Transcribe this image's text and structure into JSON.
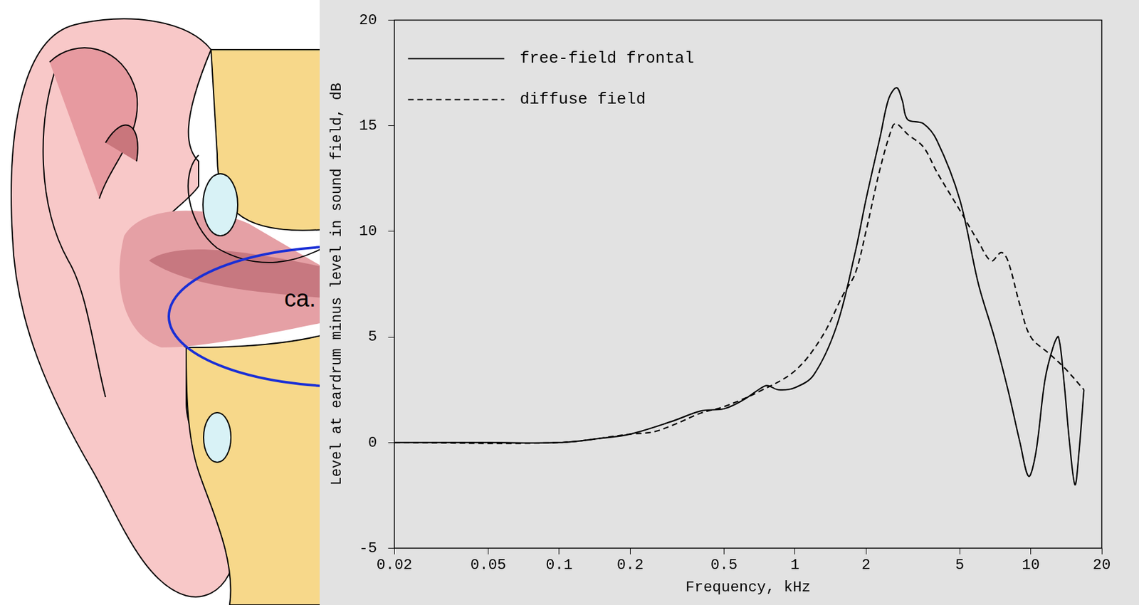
{
  "figure": {
    "ear_label": "ca."
  },
  "chart_data": {
    "type": "line",
    "x_label": "Frequency, kHz",
    "y_label": "Level at eardrum minus level in sound field, dB",
    "log": "x",
    "grid": false,
    "legend": "upper left",
    "xlim": [
      0.02,
      20
    ],
    "xticks": [
      0.02,
      0.05,
      0.1,
      0.2,
      0.5,
      1,
      2,
      5,
      10,
      20
    ],
    "ylim": [
      -5,
      20
    ],
    "yticks": [
      -5,
      0,
      5,
      10,
      15,
      20
    ],
    "series": [
      {
        "name": "free-field frontal",
        "color": "#000000",
        "line_style": "solid",
        "marker": "none",
        "x": [
          0.02,
          0.05,
          0.1,
          0.15,
          0.2,
          0.3,
          0.4,
          0.5,
          0.6,
          0.7,
          0.76,
          0.85,
          1.0,
          1.2,
          1.5,
          1.8,
          2.0,
          2.3,
          2.5,
          2.7,
          2.85,
          3.0,
          3.5,
          4.0,
          5.0,
          6.0,
          7.0,
          8.0,
          9.0,
          9.8,
          10.5,
          11.5,
          12.5,
          13.1,
          13.8,
          14.6,
          15.4,
          16.0,
          16.8
        ],
        "values": [
          0,
          0,
          0,
          0.2,
          0.4,
          1.0,
          1.5,
          1.6,
          2.0,
          2.5,
          2.7,
          2.5,
          2.6,
          3.2,
          5.5,
          9.0,
          11.5,
          14.5,
          16.3,
          16.8,
          16.2,
          15.3,
          15.1,
          14.3,
          11.5,
          7.5,
          5.0,
          2.5,
          0.0,
          -1.6,
          -0.5,
          3.0,
          4.6,
          5.0,
          3.0,
          0.0,
          -2.0,
          -0.5,
          2.5
        ]
      },
      {
        "name": "diffuse field",
        "color": "#000000",
        "line_style": "dashed",
        "marker": "none",
        "x": [
          0.02,
          0.1,
          0.2,
          0.25,
          0.3,
          0.4,
          0.5,
          0.7,
          1.0,
          1.3,
          1.6,
          1.8,
          2.0,
          2.3,
          2.6,
          2.7,
          3.0,
          3.5,
          4.0,
          5.0,
          6.0,
          6.8,
          7.5,
          8.0,
          9.0,
          10.0,
          12.0,
          14.0,
          16.8
        ],
        "values": [
          0,
          0,
          0.4,
          0.5,
          0.8,
          1.4,
          1.7,
          2.4,
          3.4,
          5.0,
          7.0,
          8.0,
          10.0,
          13.0,
          15.0,
          15.1,
          14.6,
          14.0,
          12.8,
          11.0,
          9.5,
          8.6,
          9.0,
          8.6,
          6.5,
          5.0,
          4.2,
          3.5,
          2.5
        ]
      }
    ]
  }
}
